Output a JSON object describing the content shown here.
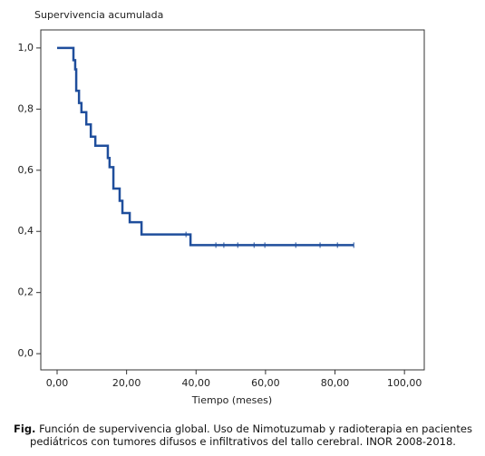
{
  "chart_data": {
    "type": "step",
    "ylabel": "Supervivencia acumulada",
    "xlabel": "Tiempo (meses)",
    "series": [
      {
        "color": "#1f4e9c",
        "x": [
          0,
          4.7,
          5.2,
          5.5,
          6.3,
          7.0,
          8.4,
          9.7,
          11.0,
          14.6,
          15.1,
          16.2,
          18.0,
          18.8,
          20.9,
          24.3,
          38.4,
          85.4
        ],
        "values": [
          1.0,
          0.96,
          0.93,
          0.86,
          0.82,
          0.79,
          0.75,
          0.71,
          0.68,
          0.64,
          0.61,
          0.54,
          0.5,
          0.46,
          0.43,
          0.39,
          0.355,
          0.355
        ]
      }
    ],
    "censored": {
      "x": [
        37.1,
        45.7,
        48.0,
        52.0,
        56.7,
        59.8,
        68.7,
        75.7,
        80.7,
        85.4
      ],
      "values": [
        0.39,
        0.355,
        0.355,
        0.355,
        0.355,
        0.355,
        0.355,
        0.355,
        0.355,
        0.355
      ]
    },
    "xlim": [
      -4.7,
      105.7
    ],
    "ylim": [
      -0.053,
      1.059
    ],
    "xticks": [
      {
        "value": 0,
        "label": "0,00"
      },
      {
        "value": 20,
        "label": "20,00"
      },
      {
        "value": 40,
        "label": "40,00"
      },
      {
        "value": 60,
        "label": "60,00"
      },
      {
        "value": 80,
        "label": "80,00"
      },
      {
        "value": 100,
        "label": "100,00"
      }
    ],
    "yticks": [
      {
        "value": 0,
        "label": "0,0"
      },
      {
        "value": 0.2,
        "label": "0,2"
      },
      {
        "value": 0.4,
        "label": "0,4"
      },
      {
        "value": 0.6,
        "label": "0,6"
      },
      {
        "value": 0.8,
        "label": "0,8"
      },
      {
        "value": 1.0,
        "label": "1,0"
      }
    ]
  },
  "caption": {
    "label": "Fig.",
    "text": "Función de supervivencia global. Uso de Nimotuzumab y radioterapia en pacientes pediátricos con tumores difusos e infiltrativos del tallo cerebral. INOR 2008-2018."
  }
}
